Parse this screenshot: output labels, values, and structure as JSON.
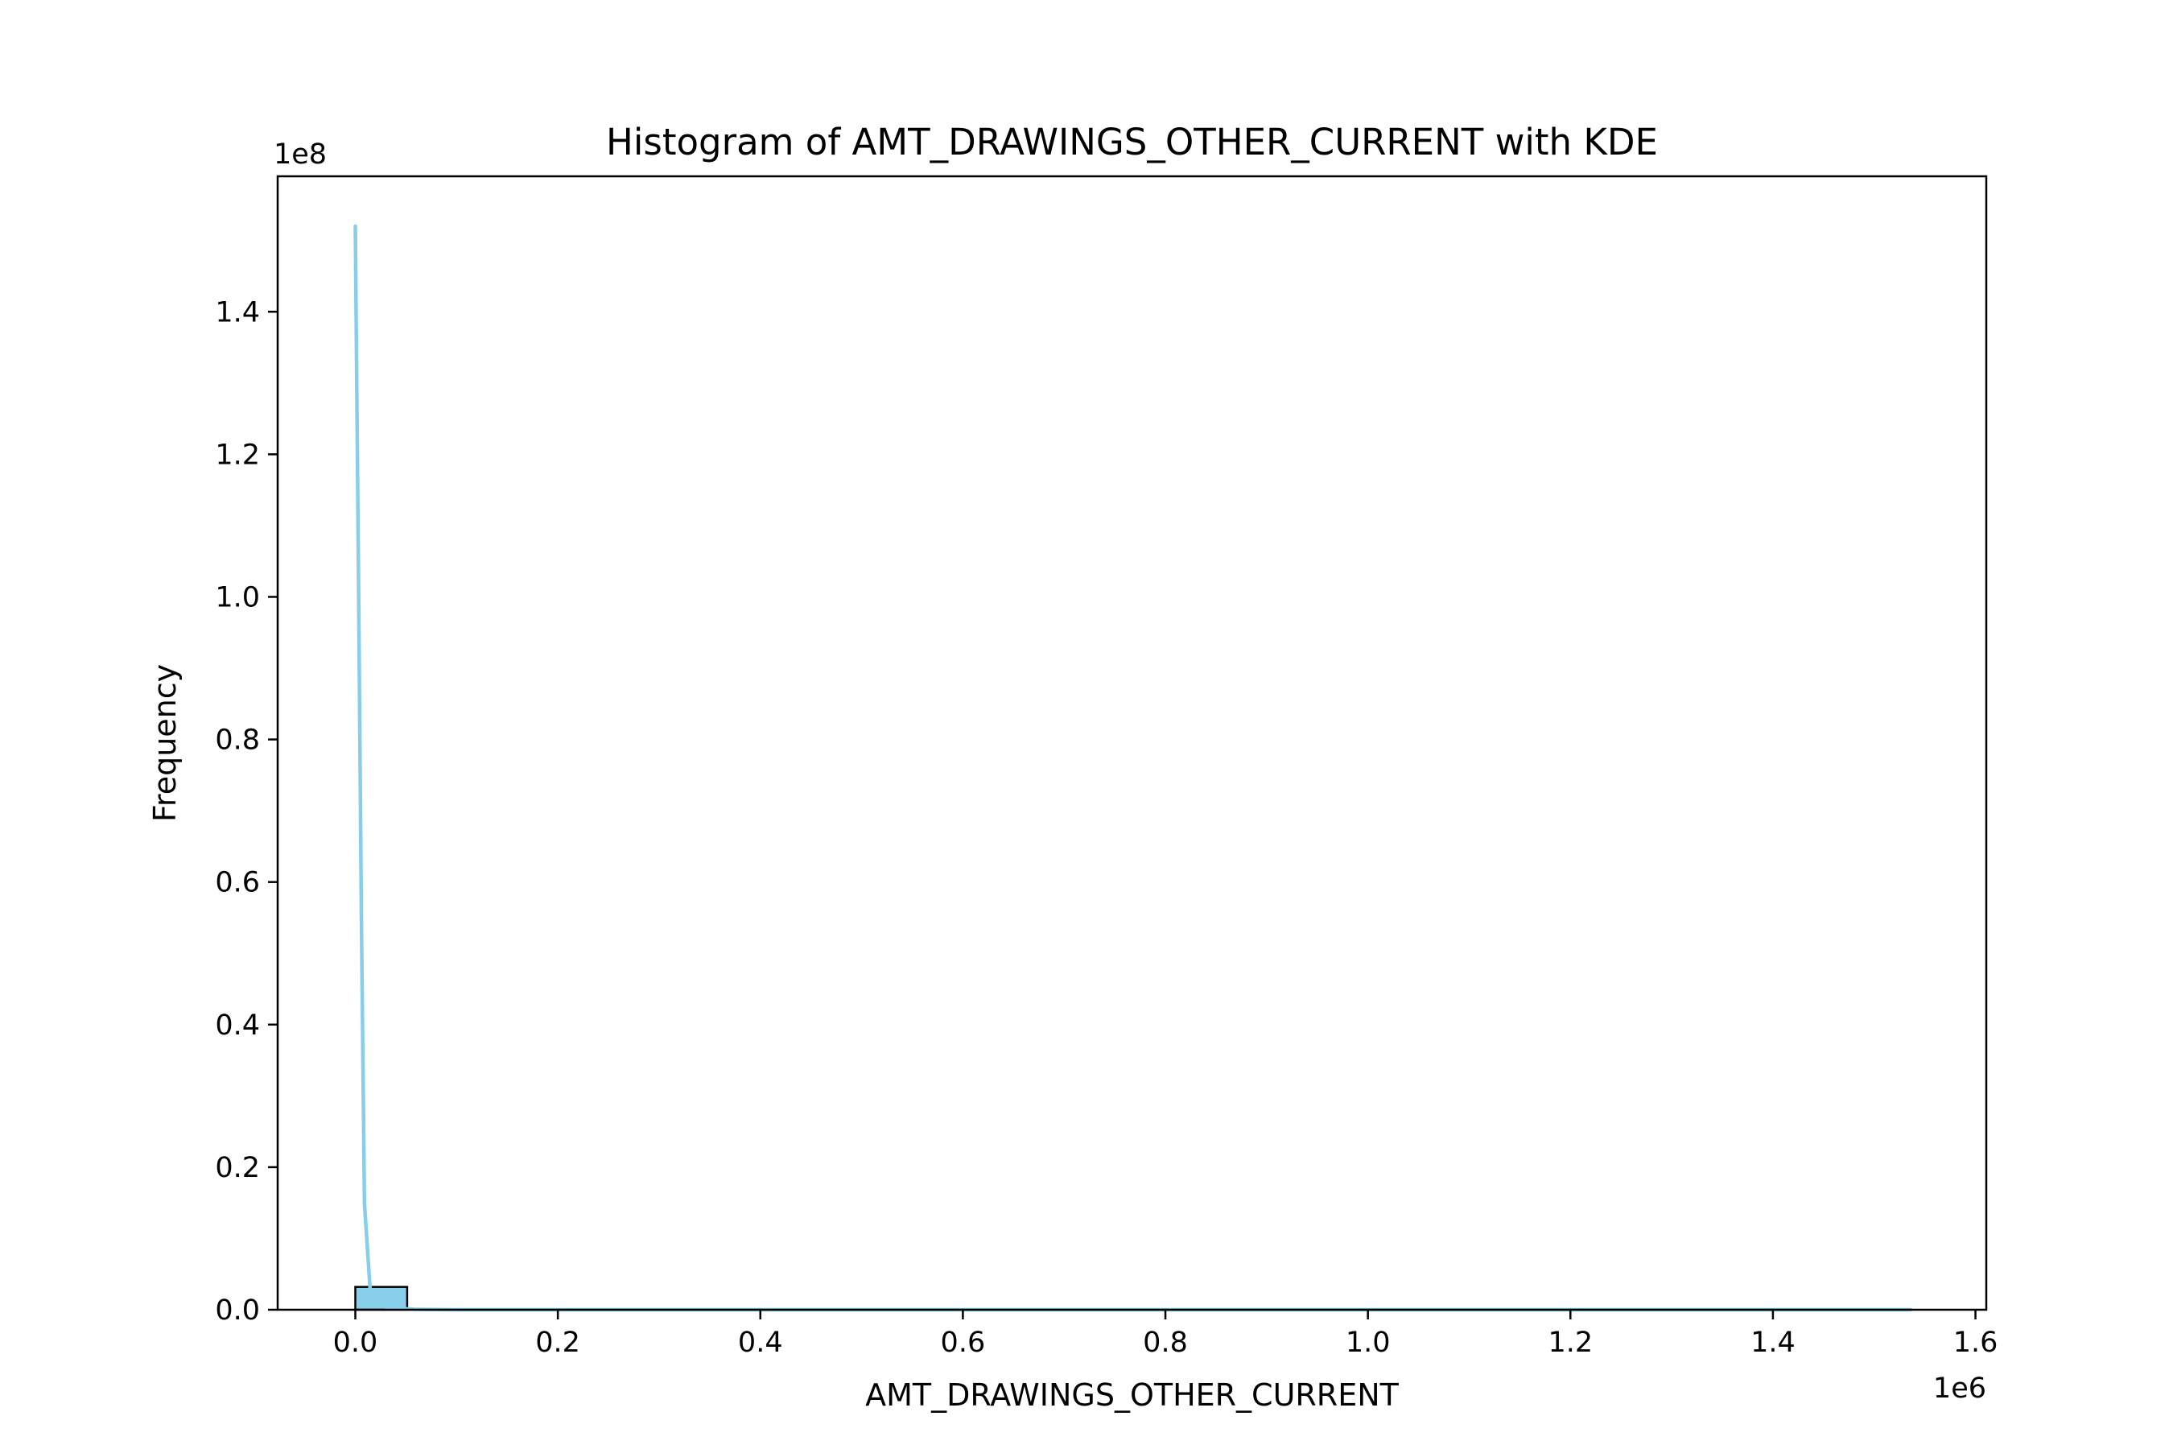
{
  "chart_data": {
    "type": "bar",
    "title": "Histogram of AMT_DRAWINGS_OTHER_CURRENT with KDE",
    "xlabel": "AMT_DRAWINGS_OTHER_CURRENT",
    "ylabel": "Frequency",
    "x_offset_label": "1e6",
    "y_offset_label": "1e8",
    "xlim": [
      -0.0767,
      1.6107
    ],
    "ylim": [
      0,
      1.59
    ],
    "x_ticks": [
      0.0,
      0.2,
      0.4,
      0.6,
      0.8,
      1.0,
      1.2,
      1.4,
      1.6
    ],
    "x_tick_labels": [
      "0.0",
      "0.2",
      "0.4",
      "0.6",
      "0.8",
      "1.0",
      "1.2",
      "1.4",
      "1.6"
    ],
    "y_ticks": [
      0.0,
      0.2,
      0.4,
      0.6,
      0.8,
      1.0,
      1.2,
      1.4
    ],
    "y_tick_labels": [
      "0.0",
      "0.2",
      "0.4",
      "0.6",
      "0.8",
      "1.0",
      "1.2",
      "1.4"
    ],
    "grid": false,
    "bin_width": 0.0512,
    "bins": [
      {
        "x0": 0.0,
        "x1": 0.0512,
        "count": 0.032
      },
      {
        "x0": 0.0512,
        "x1": 1.536,
        "count": 0.0
      }
    ],
    "kde": {
      "x": [
        0.0,
        0.003,
        0.006,
        0.009,
        0.015,
        0.03,
        0.06,
        0.1,
        0.2,
        0.4,
        0.6,
        0.8,
        1.0,
        1.2,
        1.4,
        1.536
      ],
      "y": [
        1.52,
        1.05,
        0.55,
        0.15,
        0.02,
        0.003,
        0.0005,
        0.0,
        0.0,
        0.0,
        0.0,
        0.0,
        0.0,
        0.0,
        0.0,
        0.0
      ]
    },
    "colors": {
      "bar_fill": "#87ceeb",
      "bar_edge": "#000000",
      "kde_line": "#87ceeb",
      "axes": "#000000"
    }
  }
}
